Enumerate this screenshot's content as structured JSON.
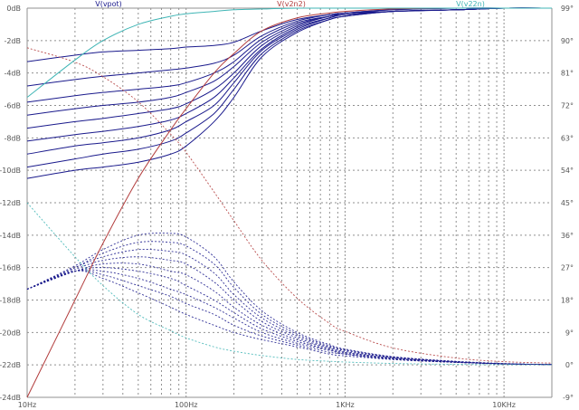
{
  "chart_data": {
    "type": "line",
    "title": "",
    "xlabel": "",
    "ylabel": "",
    "x_scale": "log",
    "xlim": [
      10,
      20000
    ],
    "ylim_left": [
      -24,
      0
    ],
    "ylim_right": [
      -9,
      99
    ],
    "grid": true,
    "x_ticks": [
      "10Hz",
      "100Hz",
      "1KHz",
      "10KHz"
    ],
    "y_ticks_left": [
      "0dB",
      "-2dB",
      "-4dB",
      "-6dB",
      "-8dB",
      "-10dB",
      "-12dB",
      "-14dB",
      "-16dB",
      "-18dB",
      "-20dB",
      "-22dB",
      "-24dB"
    ],
    "y_ticks_right": [
      "99°",
      "90°",
      "81°",
      "72°",
      "63°",
      "54°",
      "45°",
      "36°",
      "27°",
      "18°",
      "9°",
      "0°",
      "-9°"
    ],
    "colors": {
      "vpot": "#1a1a8c",
      "v2n2": "#b23c3c",
      "v22n": "#3fb5b5",
      "grid": "#909090",
      "tick_text": "#555555"
    },
    "series": [
      {
        "name": "V(vpot)",
        "color": "#1a1a8c",
        "x": [
          10,
          20,
          30,
          50,
          80,
          100,
          150,
          200,
          300,
          500,
          800,
          1000,
          2000,
          5000,
          10000,
          20000
        ],
        "magnitude_db": [
          [
            -10.5,
            -10.0,
            -9.8,
            -9.5,
            -9.0,
            -8.5,
            -7.0,
            -5.5,
            -3.0,
            -1.5,
            -0.7,
            -0.5,
            -0.2,
            -0.1,
            0.0,
            0.0
          ],
          [
            -9.8,
            -9.3,
            -9.0,
            -8.7,
            -8.2,
            -7.7,
            -6.5,
            -5.0,
            -2.8,
            -1.4,
            -0.7,
            -0.5,
            -0.2,
            -0.1,
            0.0,
            0.0
          ],
          [
            -9.0,
            -8.5,
            -8.3,
            -8.0,
            -7.5,
            -7.0,
            -6.0,
            -4.6,
            -2.6,
            -1.3,
            -0.6,
            -0.4,
            -0.2,
            -0.1,
            0.0,
            0.0
          ],
          [
            -8.2,
            -7.8,
            -7.6,
            -7.3,
            -6.9,
            -6.5,
            -5.5,
            -4.3,
            -2.5,
            -1.2,
            -0.6,
            -0.4,
            -0.2,
            -0.1,
            0.0,
            0.0
          ],
          [
            -7.4,
            -7.0,
            -6.8,
            -6.5,
            -6.2,
            -5.9,
            -5.0,
            -4.0,
            -2.3,
            -1.1,
            -0.5,
            -0.4,
            -0.2,
            -0.1,
            0.0,
            0.0
          ],
          [
            -6.6,
            -6.2,
            -6.0,
            -5.8,
            -5.5,
            -5.2,
            -4.5,
            -3.6,
            -2.1,
            -1.0,
            -0.5,
            -0.4,
            -0.2,
            -0.1,
            0.0,
            0.0
          ],
          [
            -5.8,
            -5.4,
            -5.2,
            -5.0,
            -4.8,
            -4.6,
            -4.0,
            -3.3,
            -1.9,
            -0.9,
            -0.5,
            -0.3,
            -0.2,
            -0.1,
            0.0,
            0.0
          ],
          [
            -4.8,
            -4.4,
            -4.2,
            -4.0,
            -3.8,
            -3.7,
            -3.4,
            -2.9,
            -1.7,
            -0.8,
            -0.4,
            -0.3,
            -0.1,
            0.0,
            0.0,
            0.0
          ],
          [
            -3.3,
            -2.9,
            -2.7,
            -2.6,
            -2.5,
            -2.4,
            -2.3,
            -2.1,
            -1.4,
            -0.7,
            -0.4,
            -0.3,
            -0.1,
            0.0,
            0.0,
            0.0
          ]
        ],
        "phase_deg": [
          [
            21,
            26,
            24,
            20,
            16,
            14,
            11,
            9,
            7,
            5,
            3,
            2.5,
            1.5,
            0.7,
            0.3,
            0.1
          ],
          [
            21,
            26,
            25,
            22,
            19,
            17,
            14,
            11,
            8,
            5.5,
            3.5,
            3,
            1.5,
            0.7,
            0.3,
            0.1
          ],
          [
            21,
            26,
            26,
            24,
            21,
            19.5,
            16,
            13,
            9,
            6,
            4,
            3,
            1.7,
            0.7,
            0.3,
            0.1
          ],
          [
            21,
            26,
            27,
            26,
            24,
            22,
            18,
            14.5,
            10,
            6.5,
            4.2,
            3.3,
            1.8,
            0.8,
            0.3,
            0.1
          ],
          [
            21,
            26,
            28,
            28,
            26,
            25,
            20.5,
            16,
            11,
            7,
            4.5,
            3.5,
            1.9,
            0.8,
            0.3,
            0.1
          ],
          [
            21,
            26.5,
            29,
            30,
            29,
            28,
            23,
            18,
            12,
            7.5,
            4.7,
            3.7,
            2,
            0.8,
            0.3,
            0.1
          ],
          [
            21,
            27,
            30,
            32,
            31.5,
            30.5,
            25.5,
            19.5,
            13,
            8,
            5,
            4,
            2.1,
            0.9,
            0.3,
            0.1
          ],
          [
            21,
            27,
            31,
            34,
            34,
            33,
            28,
            21.5,
            14,
            8.5,
            5.3,
            4.2,
            2.2,
            0.9,
            0.3,
            0.1
          ],
          [
            21,
            27.5,
            32,
            36,
            36.5,
            35.5,
            30,
            23,
            15,
            9,
            5.6,
            4.4,
            2.3,
            1,
            0.4,
            0.1
          ]
        ]
      },
      {
        "name": "V(v2n2)",
        "color": "#b23c3c",
        "x": [
          10,
          20,
          30,
          50,
          80,
          100,
          150,
          200,
          300,
          500,
          800,
          1000,
          2000,
          5000,
          10000,
          20000
        ],
        "magnitude_db": [
          -24.0,
          -18.0,
          -14.5,
          -10.5,
          -7.5,
          -6.2,
          -4.0,
          -2.8,
          -1.4,
          -0.6,
          -0.3,
          -0.2,
          -0.05,
          0.0,
          0.0,
          0.0
        ],
        "phase_deg": [
          88,
          84,
          80,
          73,
          64,
          59,
          48,
          40,
          29,
          18.5,
          11.5,
          9.3,
          4.7,
          1.9,
          0.9,
          0.5
        ]
      },
      {
        "name": "V(v22n)",
        "color": "#3fb5b5",
        "x": [
          10,
          20,
          30,
          50,
          80,
          100,
          150,
          200,
          300,
          500,
          800,
          1000,
          2000,
          5000,
          10000,
          20000
        ],
        "magnitude_db": [
          -5.5,
          -3.2,
          -2.0,
          -1.0,
          -0.5,
          -0.35,
          -0.2,
          -0.1,
          -0.05,
          0.0,
          0.0,
          0.0,
          0.0,
          0.0,
          0.0,
          0.0
        ],
        "phase_deg": [
          45,
          30,
          22,
          14,
          9.5,
          7.5,
          5,
          3.8,
          2.6,
          1.5,
          1.0,
          0.8,
          0.4,
          0.15,
          0.08,
          0.04
        ]
      }
    ]
  }
}
